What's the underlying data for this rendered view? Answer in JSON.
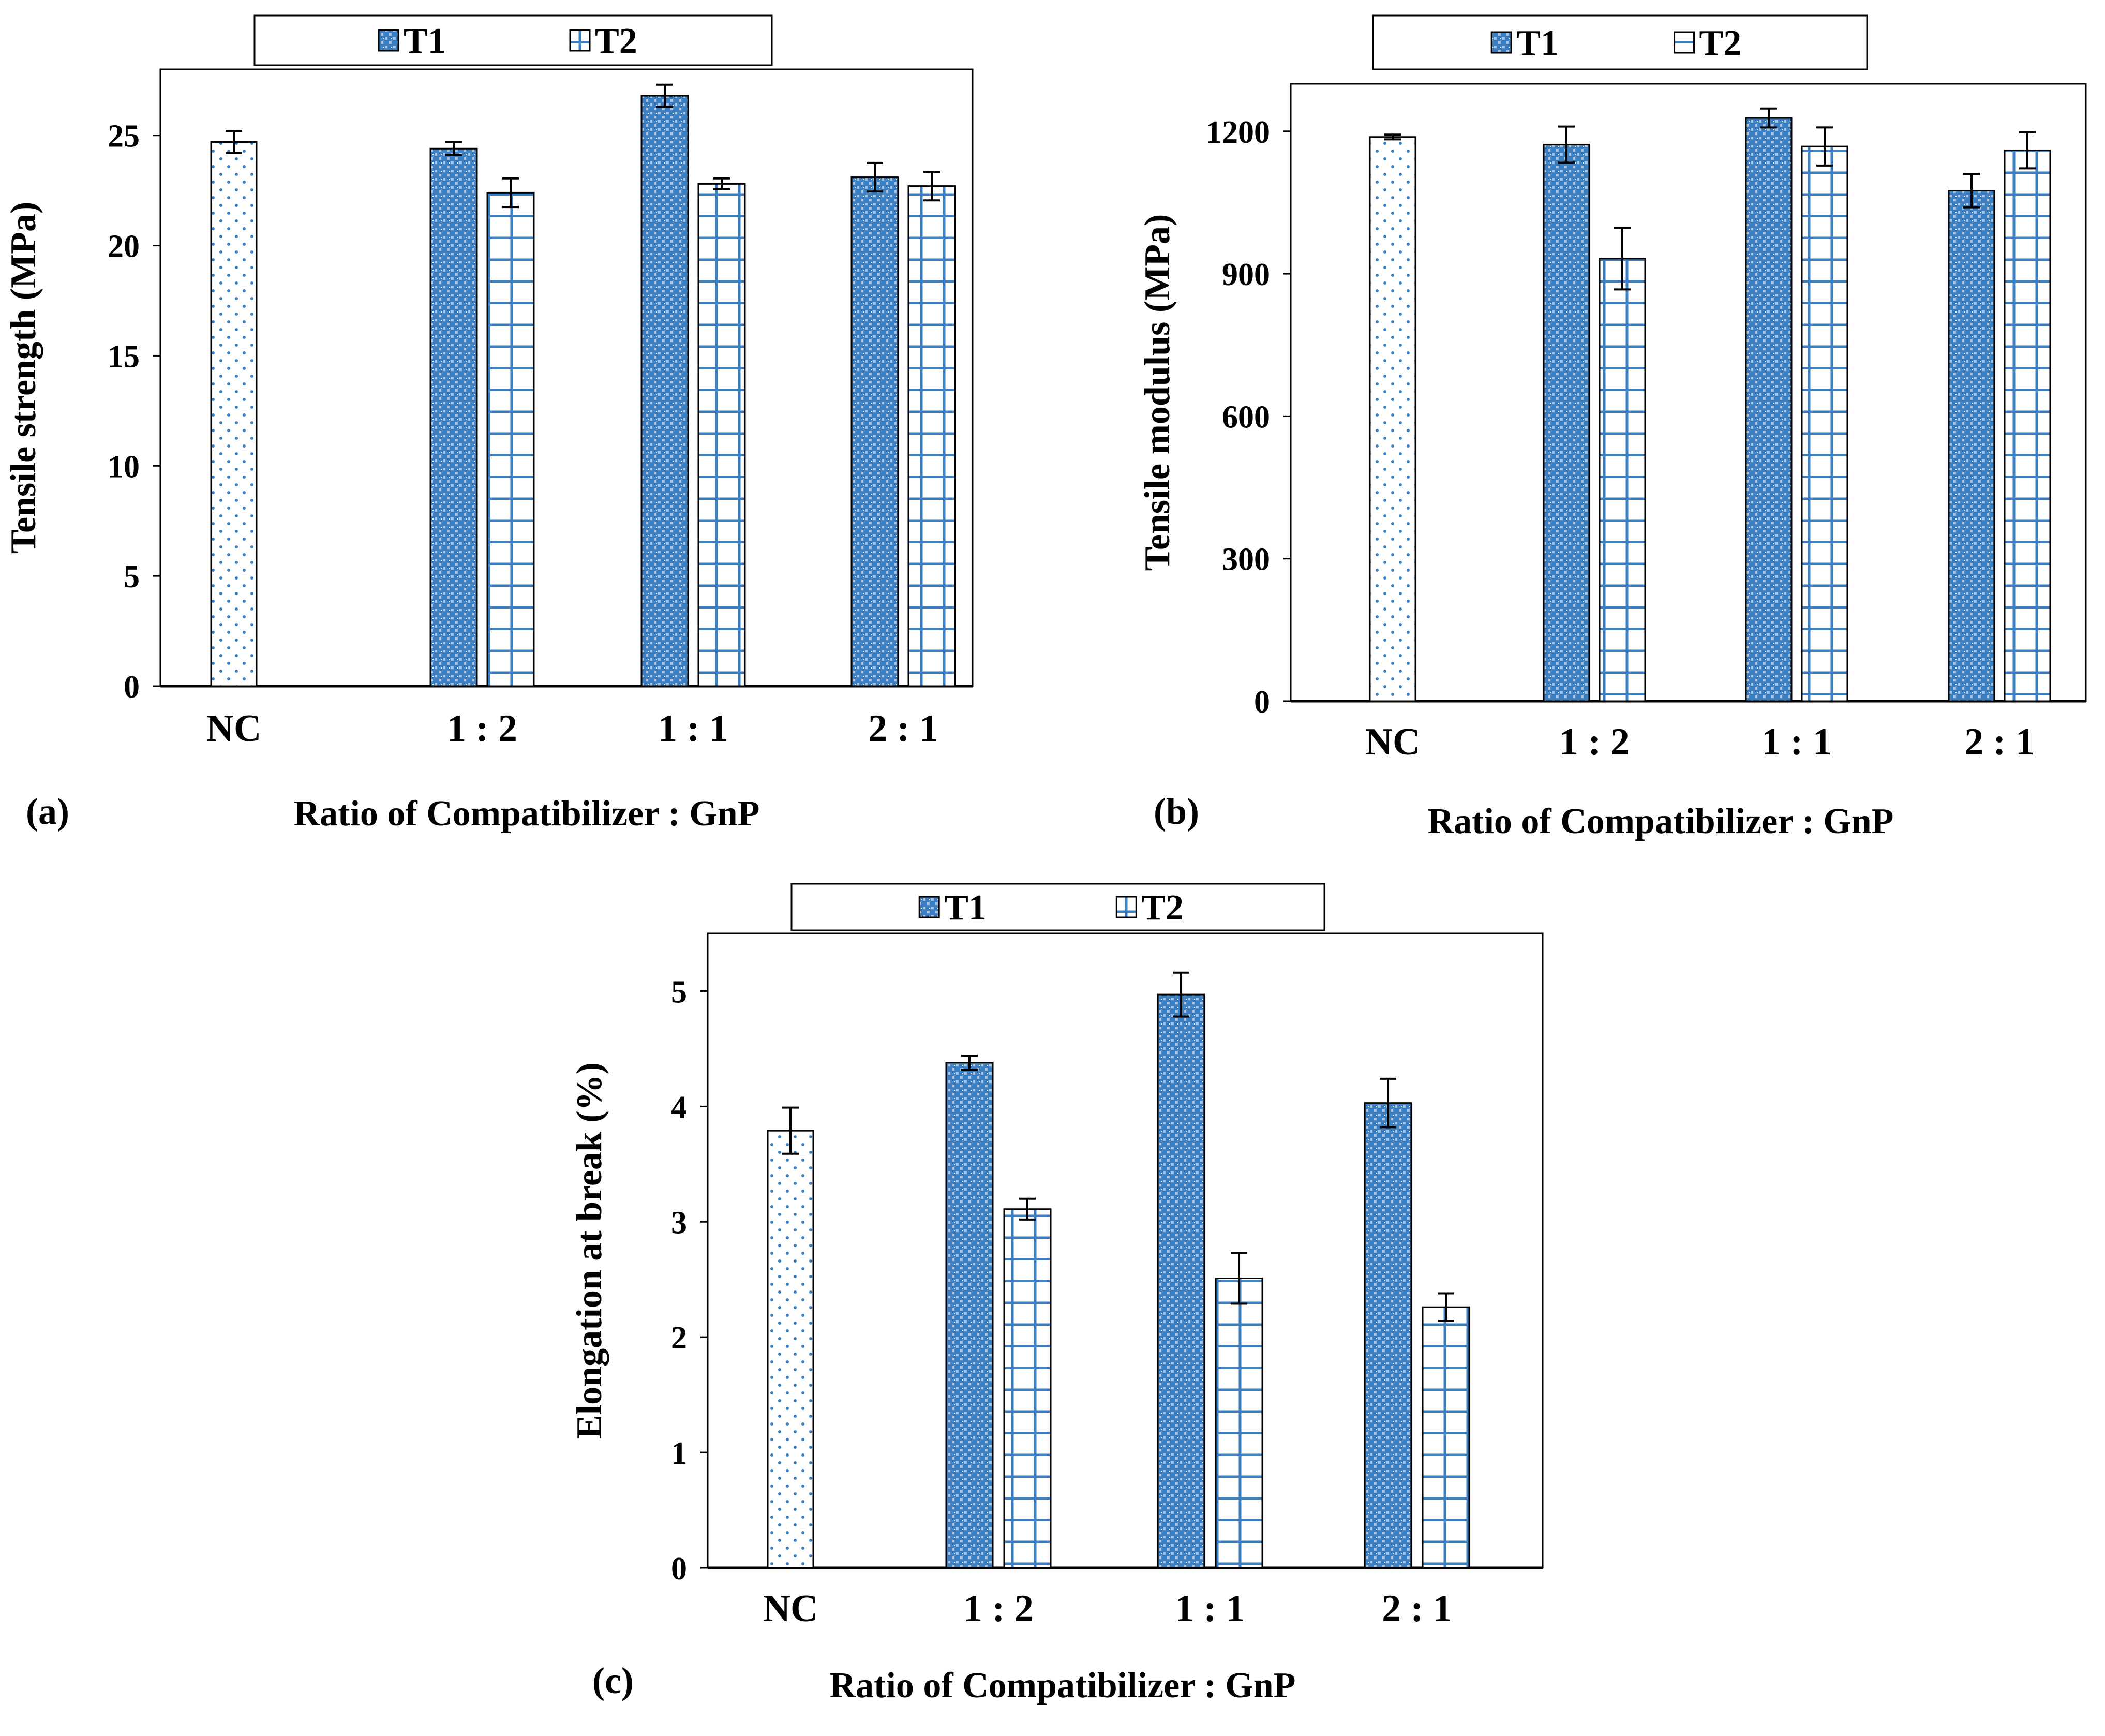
{
  "colors": {
    "bar_fill": "#3a7fc4",
    "bar_edge": "#000000",
    "nc_dot": "#3a7fc4",
    "axis": "#000000"
  },
  "chart_data": [
    {
      "panel_label": "(a)",
      "type": "bar",
      "ylabel": "Tensile strength (MPa)",
      "xlabel": "Ratio of Compatibilizer : GnP",
      "categories": [
        "NC",
        "1 : 2",
        "1 : 1",
        "2 : 1"
      ],
      "ylim": [
        0,
        28
      ],
      "yticks": [
        0,
        5,
        10,
        15,
        20,
        25
      ],
      "legend": [
        "T1",
        "T2"
      ],
      "legend_position": "top",
      "control": {
        "name": "NC",
        "value": 24.7,
        "error": 0.5
      },
      "series": [
        {
          "name": "T1",
          "values": [
            null,
            24.4,
            26.8,
            23.1
          ],
          "errors": [
            null,
            0.3,
            0.5,
            0.65
          ]
        },
        {
          "name": "T2",
          "values": [
            null,
            22.4,
            22.8,
            22.7
          ],
          "errors": [
            null,
            0.65,
            0.25,
            0.65
          ]
        }
      ]
    },
    {
      "panel_label": "(b)",
      "type": "bar",
      "ylabel": "Tensile modulus (MPa)",
      "xlabel": "Ratio of Compatibilizer : GnP",
      "categories": [
        "NC",
        "1 : 2",
        "1 : 1",
        "2 : 1"
      ],
      "ylim": [
        0,
        1300
      ],
      "yticks": [
        0,
        300,
        600,
        900,
        1200
      ],
      "legend": [
        "T1",
        "T2"
      ],
      "legend_position": "top",
      "control": {
        "name": "NC",
        "value": 1188,
        "error": 5
      },
      "series": [
        {
          "name": "T1",
          "values": [
            null,
            1172,
            1228,
            1075
          ],
          "errors": [
            null,
            38,
            20,
            35
          ]
        },
        {
          "name": "T2",
          "values": [
            null,
            932,
            1168,
            1160
          ],
          "errors": [
            null,
            65,
            40,
            38
          ]
        }
      ]
    },
    {
      "panel_label": "(c)",
      "type": "bar",
      "ylabel": "Elongation at break (%)",
      "xlabel": "Ratio of Compatibilizer : GnP",
      "categories": [
        "NC",
        "1 : 2",
        "1 : 1",
        "2 : 1"
      ],
      "ylim": [
        0,
        5.5
      ],
      "yticks": [
        0,
        1,
        2,
        3,
        4,
        5
      ],
      "legend": [
        "T1",
        "T2"
      ],
      "legend_position": "top",
      "control": {
        "name": "NC",
        "value": 3.79,
        "error": 0.2
      },
      "series": [
        {
          "name": "T1",
          "values": [
            null,
            4.38,
            4.97,
            4.03
          ],
          "errors": [
            null,
            0.06,
            0.19,
            0.21
          ]
        },
        {
          "name": "T2",
          "values": [
            null,
            3.11,
            2.51,
            2.26
          ],
          "errors": [
            null,
            0.09,
            0.22,
            0.12
          ]
        }
      ]
    }
  ]
}
